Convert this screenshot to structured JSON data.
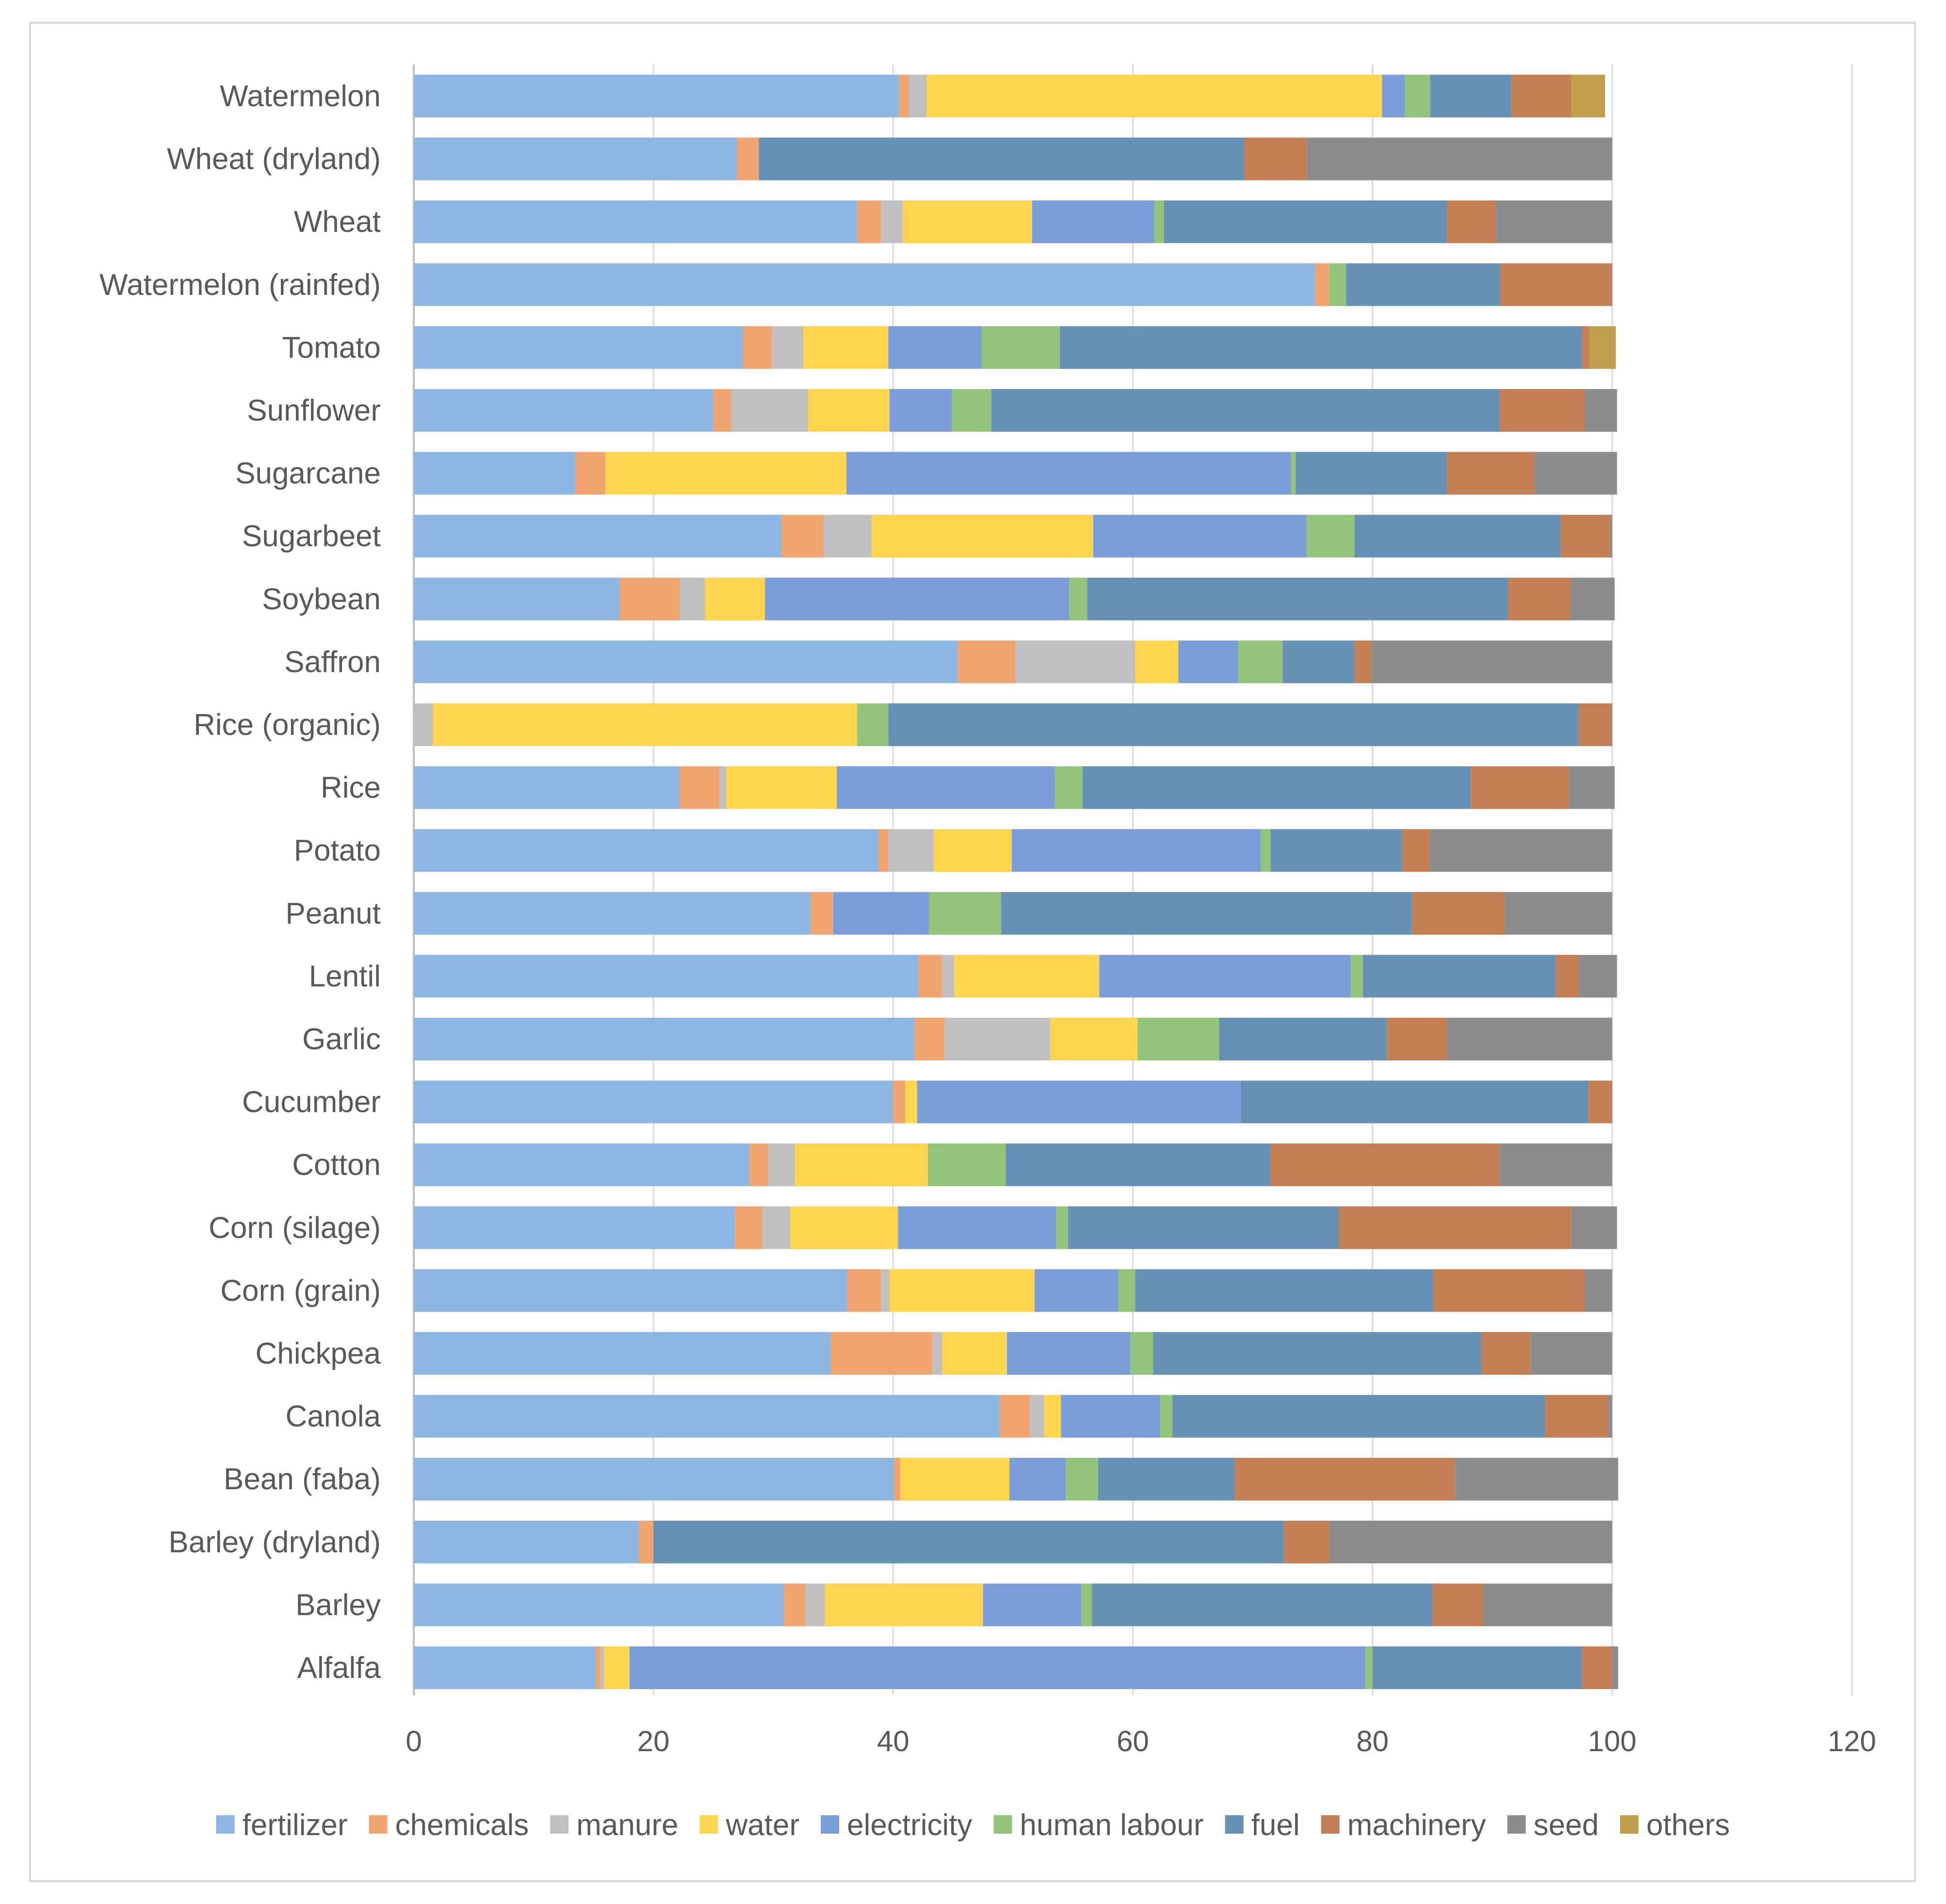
{
  "chart_data": {
    "type": "bar",
    "orientation": "horizontal",
    "stacked": true,
    "title": "",
    "xlabel": "",
    "ylabel": "",
    "xlim": [
      0,
      120
    ],
    "xticks": [
      0,
      20,
      40,
      60,
      80,
      100,
      120
    ],
    "grid": true,
    "legend_position": "bottom",
    "categories": [
      "Watermelon",
      "Wheat (dryland)",
      "Wheat",
      "Watermelon (rainfed)",
      "Tomato",
      "Sunflower",
      "Sugarcane",
      "Sugarbeet",
      "Soybean",
      "Saffron",
      "Rice (organic)",
      "Rice",
      "Potato",
      "Peanut",
      "Lentil",
      "Garlic",
      "Cucumber",
      "Cotton",
      "Corn (silage)",
      "Corn (grain)",
      "Chickpea",
      "Canola",
      "Bean (faba)",
      "Barley (dryland)",
      "Barley",
      "Alfalfa"
    ],
    "series": [
      {
        "name": "fertilizer",
        "color": "#8db7e2",
        "values": [
          40.5,
          27,
          37,
          75.2,
          27.5,
          25,
          13.5,
          30.7,
          17.2,
          45.4,
          0,
          22.2,
          38.8,
          33.1,
          42.1,
          41.8,
          40,
          28,
          26.8,
          36.2,
          34.8,
          48.9,
          40.1,
          18.8,
          30.9,
          15.2
        ]
      },
      {
        "name": "chemicals",
        "color": "#f0a470",
        "values": [
          0.8,
          1.8,
          2,
          1.2,
          2.4,
          1.5,
          2.5,
          3.5,
          5,
          4.8,
          0,
          3.3,
          0.8,
          1.9,
          2,
          2.5,
          1,
          1.6,
          2.3,
          2.8,
          8.5,
          2.5,
          0.5,
          1.2,
          1.8,
          0.4
        ]
      },
      {
        "name": "manure",
        "color": "#c0c0c0",
        "values": [
          1.5,
          0,
          1.8,
          0,
          2.6,
          6.4,
          0,
          4,
          2.1,
          10,
          1.6,
          0.6,
          3.8,
          0,
          1,
          8.8,
          0,
          2.2,
          2.3,
          0.7,
          0.8,
          1.2,
          0,
          0,
          1.6,
          0.3
        ]
      },
      {
        "name": "water",
        "color": "#ffd54f",
        "values": [
          38,
          0,
          10.8,
          0,
          7.1,
          6.8,
          20.1,
          18.5,
          5,
          3.6,
          35.4,
          9.2,
          6.5,
          0,
          12.1,
          7.3,
          1,
          11.1,
          9,
          12.1,
          5.4,
          1.4,
          9.1,
          0,
          13.2,
          2.1
        ]
      },
      {
        "name": "electricity",
        "color": "#7b9ed9",
        "values": [
          1.9,
          0,
          10.2,
          0,
          7.8,
          5.2,
          37.1,
          17.8,
          25.4,
          5,
          0,
          18.2,
          20.8,
          8,
          21,
          0,
          27,
          0,
          13.2,
          7,
          10.3,
          8.3,
          4.7,
          0,
          8.2,
          61.4
        ]
      },
      {
        "name": "human labour",
        "color": "#94c47c",
        "values": [
          2.1,
          0,
          0.8,
          1.4,
          6.5,
          3.3,
          0.4,
          4,
          1.5,
          3.7,
          2.6,
          2.3,
          0.8,
          6,
          1,
          6.8,
          0,
          6.5,
          1,
          1.4,
          1.9,
          1,
          2.7,
          0,
          0.9,
          0.6
        ]
      },
      {
        "name": "fuel",
        "color": "#6690b4",
        "values": [
          6.8,
          40.5,
          23.6,
          12.9,
          43.6,
          42.4,
          12.6,
          17.2,
          35.1,
          6,
          57.6,
          32.4,
          11,
          34.3,
          16.1,
          14,
          29,
          22.1,
          22.6,
          24.9,
          27.4,
          31.1,
          11.4,
          52.6,
          28.4,
          17.5
        ]
      },
      {
        "name": "machinery",
        "color": "#c47f55",
        "values": [
          5,
          5.2,
          4.1,
          9.3,
          0.6,
          7.1,
          7.3,
          4.1,
          5.2,
          1.4,
          2.7,
          8.2,
          2.3,
          7.7,
          1.9,
          5,
          2,
          19.1,
          19.4,
          12.6,
          4.1,
          5.3,
          18.4,
          3.8,
          4.2,
          2.5
        ]
      },
      {
        "name": "seed",
        "color": "#8c8c8c",
        "values": [
          0,
          25.5,
          9.7,
          0,
          0,
          2.7,
          6.9,
          0.2,
          3.7,
          20.1,
          0.1,
          3.8,
          15.2,
          9,
          3.2,
          13.8,
          0,
          9.4,
          3.8,
          2.3,
          6.8,
          0.3,
          13.6,
          23.6,
          10.8,
          0.5
        ]
      },
      {
        "name": "others",
        "color": "#bf9f4b",
        "values": [
          2.8,
          0,
          0,
          0,
          2.2,
          0,
          0,
          0,
          0,
          0,
          0,
          0,
          0,
          0,
          0,
          0,
          0,
          0,
          0,
          0,
          0,
          0,
          0,
          0,
          0,
          0
        ]
      }
    ]
  }
}
